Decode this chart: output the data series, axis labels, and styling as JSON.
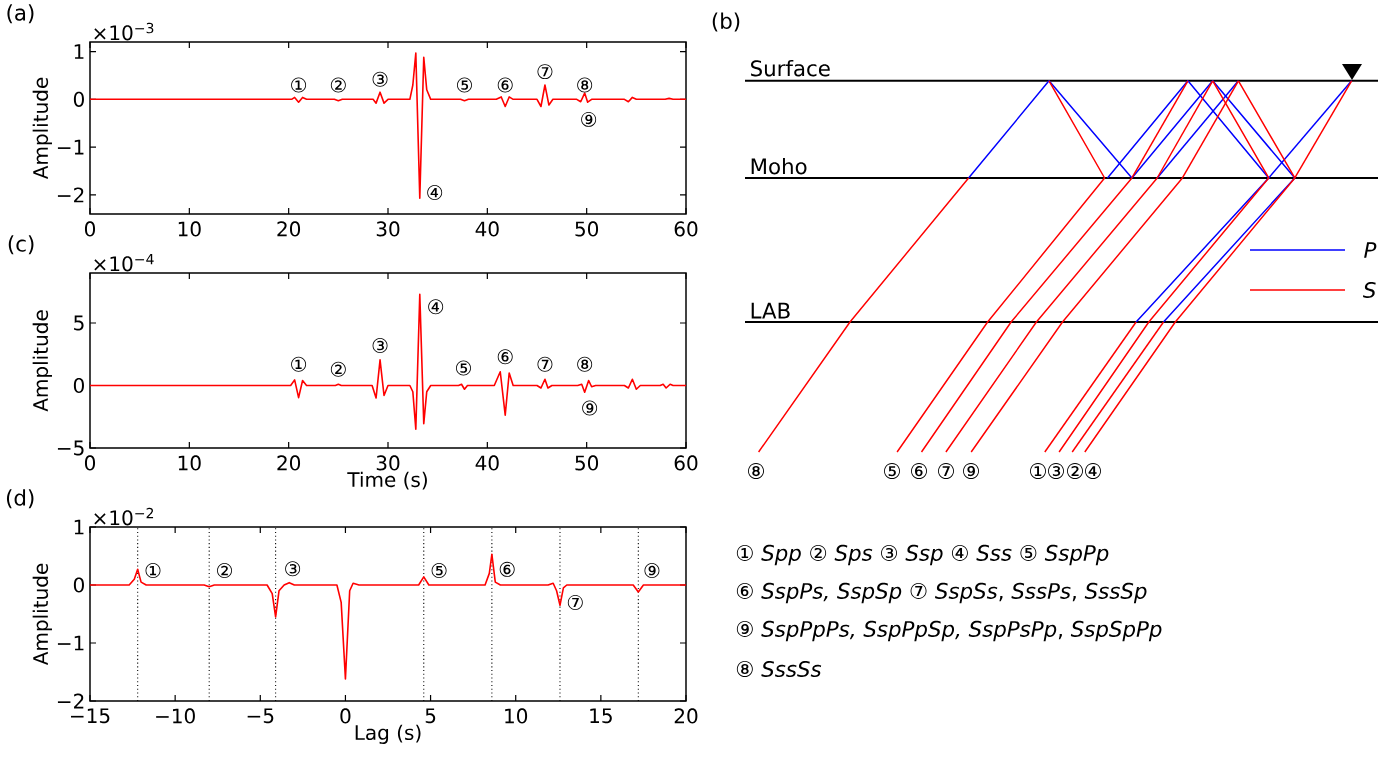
{
  "chart_data": [
    {
      "type": "line",
      "title": "(a)",
      "ylabel": "Amplitude",
      "xlim": [
        0,
        60
      ],
      "xticks": [
        0,
        10,
        20,
        30,
        40,
        50,
        60
      ],
      "ylim": [
        -2.4,
        1.2
      ],
      "yticks": [
        {
          "value": -2,
          "label": "−2"
        },
        {
          "value": -1,
          "label": "−1"
        },
        0,
        1
      ],
      "grid": false,
      "marker": "none",
      "annotations": [
        "×10$^{−3}$",
        "①",
        "②",
        "③",
        "④",
        "⑤",
        "⑥",
        "⑦",
        "⑧",
        "⑨"
      ],
      "series": [
        {
          "color": "#ff0000",
          "x": [
            0,
            18,
            20.3,
            20.6,
            21.0,
            21.4,
            21.8,
            24.6,
            25.0,
            25.4,
            28.5,
            28.8,
            29.2,
            29.6,
            30.0,
            32.2,
            32.5,
            32.8,
            33.2,
            33.6,
            33.9,
            34.3,
            37.3,
            37.7,
            38.1,
            40.9,
            41.4,
            41.8,
            42.2,
            42.6,
            45.0,
            45.4,
            45.8,
            46.2,
            46.6,
            49.0,
            49.4,
            49.8,
            50.1,
            50.5,
            53.8,
            54.2,
            54.6,
            55.0,
            57.9,
            58.3,
            58.7,
            60
          ],
          "values": [
            0,
            0,
            0,
            0.04,
            -0.06,
            0.04,
            0,
            0,
            -0.03,
            0,
            0,
            -0.08,
            0.15,
            -0.08,
            0,
            0,
            0.3,
            0.97,
            -2.07,
            0.88,
            0.2,
            0,
            0,
            -0.03,
            0,
            0,
            0.05,
            -0.15,
            0.05,
            0,
            0,
            -0.15,
            0.3,
            -0.12,
            0,
            0,
            -0.05,
            0.13,
            -0.06,
            0,
            0,
            -0.05,
            0.04,
            0,
            0,
            0.02,
            0,
            0
          ]
        }
      ]
    },
    {
      "type": "line",
      "title": "(c)",
      "xlabel": "Time (s)",
      "ylabel": "Amplitude",
      "xlim": [
        0,
        60
      ],
      "xticks": [
        0,
        10,
        20,
        30,
        40,
        50,
        60
      ],
      "ylim": [
        -5,
        9
      ],
      "yticks": [
        {
          "value": -5,
          "label": "−5"
        },
        0,
        5
      ],
      "grid": false,
      "marker": "none",
      "annotations": [
        "×10$^{−4}$",
        "①",
        "②",
        "③",
        "④",
        "⑤",
        "⑥",
        "⑦",
        "⑧",
        "⑨"
      ],
      "series": [
        {
          "color": "#ff0000",
          "x": [
            0,
            18,
            20.2,
            20.6,
            21.0,
            21.4,
            21.8,
            24.7,
            25.0,
            25.3,
            28.4,
            28.8,
            29.2,
            29.6,
            30.0,
            32.2,
            32.5,
            32.8,
            33.2,
            33.6,
            33.9,
            34.3,
            37.1,
            37.4,
            37.7,
            38.0,
            40.7,
            41.3,
            41.8,
            42.2,
            42.6,
            45.0,
            45.4,
            45.8,
            46.1,
            46.5,
            49.1,
            49.5,
            49.8,
            50.2,
            50.5,
            50.9,
            53.8,
            54.2,
            54.6,
            55.0,
            55.4,
            57.4,
            57.7,
            58.0,
            58.4,
            58.7,
            60
          ],
          "values": [
            0,
            0,
            0,
            0.45,
            -0.97,
            0.4,
            0,
            0,
            0.1,
            0,
            0,
            -1.0,
            2.05,
            -0.8,
            0,
            0,
            -0.5,
            -3.5,
            7.3,
            -3.05,
            -0.5,
            0,
            0,
            0.1,
            -0.3,
            0,
            0,
            1.1,
            -2.37,
            1.0,
            0,
            0,
            -0.2,
            0.5,
            -0.2,
            0,
            0,
            0.1,
            -0.54,
            0.4,
            -0.1,
            0,
            0,
            -0.2,
            0.5,
            -0.3,
            0,
            0,
            0.1,
            -0.2,
            0.1,
            0,
            0
          ]
        }
      ]
    },
    {
      "type": "line",
      "title": "(d)",
      "xlabel": "Lag (s)",
      "ylabel": "Amplitude",
      "xlim": [
        -15,
        20
      ],
      "xticks": [
        {
          "value": -15,
          "label": "−15"
        },
        {
          "value": -10,
          "label": "−10"
        },
        {
          "value": -5,
          "label": "−5"
        },
        0,
        5,
        10,
        15,
        20
      ],
      "ylim": [
        -2,
        1
      ],
      "yticks": [
        {
          "value": -2,
          "label": "−2"
        },
        {
          "value": -1,
          "label": "−1"
        },
        0,
        1
      ],
      "grid": false,
      "marker": "none",
      "annotations": [
        "×10$^{−2}$",
        "①",
        "②",
        "③",
        "⑤",
        "⑥",
        "⑦",
        "⑨"
      ],
      "ref_lines": [
        {
          "axis": "x",
          "value": -12.2,
          "color": "#000000",
          "line_style": "dotted"
        },
        {
          "axis": "x",
          "value": -8.0,
          "color": "#000000",
          "line_style": "dotted"
        },
        {
          "axis": "x",
          "value": -4.1,
          "color": "#000000",
          "line_style": "dotted"
        },
        {
          "axis": "x",
          "value": 4.6,
          "color": "#000000",
          "line_style": "dotted"
        },
        {
          "axis": "x",
          "value": 8.6,
          "color": "#000000",
          "line_style": "dotted"
        },
        {
          "axis": "x",
          "value": 12.6,
          "color": "#000000",
          "line_style": "dotted"
        },
        {
          "axis": "x",
          "value": 17.2,
          "color": "#000000",
          "line_style": "dotted"
        }
      ],
      "series": [
        {
          "color": "#ff0000",
          "x": [
            -15,
            -12.7,
            -12.4,
            -12.2,
            -12.0,
            -11.7,
            -8.3,
            -8.0,
            -7.7,
            -4.6,
            -4.3,
            -4.1,
            -3.9,
            -3.6,
            -3.3,
            -3.0,
            -0.5,
            -0.25,
            0,
            0.25,
            0.45,
            0.8,
            4.3,
            4.6,
            4.9,
            8.2,
            8.45,
            8.6,
            8.8,
            9.1,
            11.9,
            12.2,
            12.4,
            12.6,
            12.8,
            13.0,
            16.9,
            17.2,
            17.5,
            20
          ],
          "values": [
            0,
            0,
            0.1,
            0.27,
            0.05,
            0,
            0,
            -0.03,
            0,
            0,
            -0.15,
            -0.55,
            -0.1,
            0.0,
            0.04,
            0,
            0,
            -0.3,
            -1.62,
            -0.1,
            0.03,
            0,
            0,
            0.14,
            0,
            0,
            0.2,
            0.53,
            0.05,
            0,
            0,
            0.03,
            -0.1,
            -0.35,
            -0.05,
            0,
            0,
            -0.12,
            0,
            0
          ]
        }
      ]
    },
    {
      "type": "other",
      "title": "(b)",
      "annotations": [
        "Surface",
        "Moho",
        "LAB",
        "P",
        "S",
        "⑧",
        "⑤",
        "⑥",
        "⑦",
        "⑨",
        "①",
        "③",
        "②",
        "④"
      ]
    },
    {
      "type": "other",
      "annotations": [
        "① *Spp* ② *Sps* ③ *Ssp* ④ *Sss* ⑤ *SspPp*",
        "⑥ *SspPs, SspSp* ⑦ *SspSs*, *SssPs*, *SssSp*",
        "⑨ *SspPpPs, SspPpSp, SspPsPp*, *SspSpPp*",
        "⑧ *SssSs*"
      ]
    }
  ]
}
